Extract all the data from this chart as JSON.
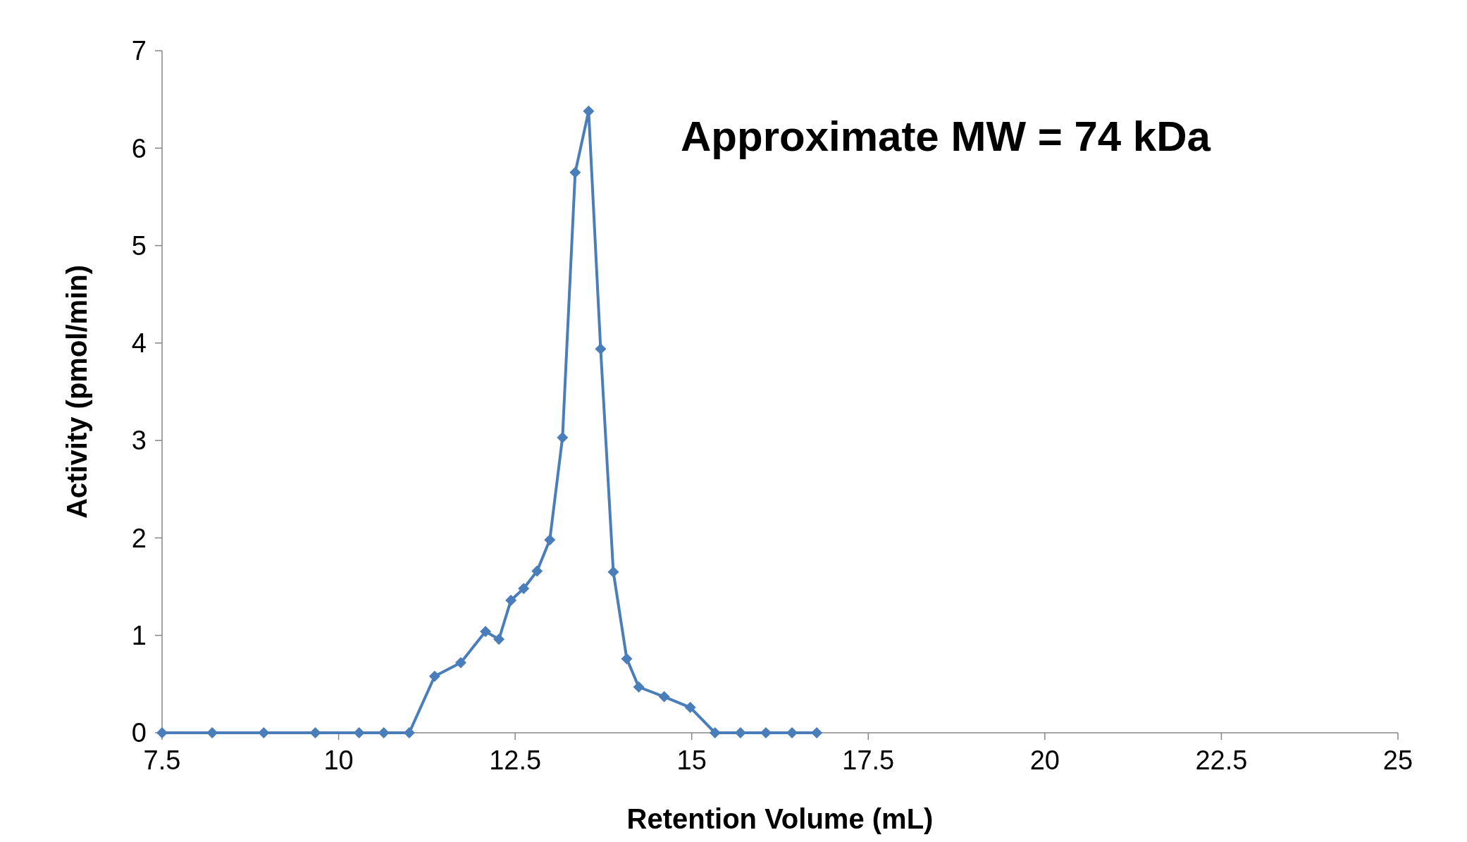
{
  "chart_data": {
    "type": "line",
    "xlabel": "Retention Volume (mL)",
    "ylabel": "Activity (pmol/min)",
    "annotations": [
      "Approximate MW = 74 kDa"
    ],
    "x": [
      7.5,
      8.21,
      8.94,
      9.67,
      10.29,
      10.64,
      11.0,
      11.36,
      11.73,
      12.08,
      12.27,
      12.44,
      12.62,
      12.81,
      12.99,
      13.17,
      13.35,
      13.54,
      13.71,
      13.89,
      14.08,
      14.25,
      14.61,
      14.98,
      15.33,
      15.69,
      16.05,
      16.42,
      16.77
    ],
    "series": [
      {
        "color": "#4a7ebb",
        "values": [
          0,
          0,
          0,
          0,
          0,
          0,
          0,
          0.58,
          0.72,
          1.04,
          0.96,
          1.36,
          1.48,
          1.66,
          1.98,
          3.03,
          5.75,
          6.38,
          3.94,
          1.65,
          0.76,
          0.47,
          0.37,
          0.26,
          0,
          0,
          0,
          0,
          0
        ]
      }
    ],
    "xlim": [
      7.5,
      25
    ],
    "xticks": [
      7.5,
      10,
      12.5,
      15,
      17.5,
      20,
      22.5,
      25
    ],
    "ylim": [
      0,
      7
    ],
    "yticks": [
      0,
      1,
      2,
      3,
      4,
      5,
      6,
      7
    ],
    "grid": false,
    "marker": "diamond",
    "line_style": "solid"
  }
}
